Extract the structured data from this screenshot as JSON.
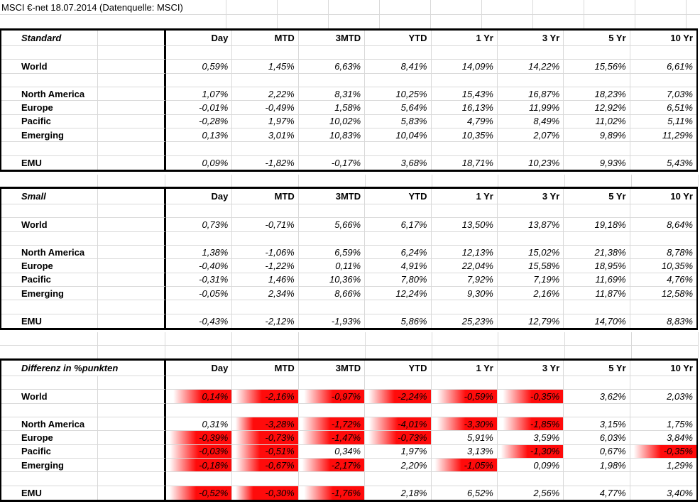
{
  "title": "MSCI €-net 18.07.2014 (Datenquelle: MSCI)",
  "colors": {
    "highlight_red": "#ff0b0b",
    "gridline": "#d9d9d9",
    "table_border": "#000000"
  },
  "columns": [
    "Day",
    "MTD",
    "3MTD",
    "YTD",
    "1 Yr",
    "3 Yr",
    "5 Yr",
    "10 Yr"
  ],
  "tables": [
    {
      "key": "standard",
      "name": "Standard",
      "rows": [
        {
          "spacer": true
        },
        {
          "label": "World",
          "values": [
            "0,59%",
            "1,45%",
            "6,63%",
            "8,41%",
            "14,09%",
            "14,22%",
            "15,56%",
            "6,61%"
          ]
        },
        {
          "spacer": true
        },
        {
          "label": "North America",
          "values": [
            "1,07%",
            "2,22%",
            "8,31%",
            "10,25%",
            "15,43%",
            "16,87%",
            "18,23%",
            "7,03%"
          ]
        },
        {
          "label": "Europe",
          "values": [
            "-0,01%",
            "-0,49%",
            "1,58%",
            "5,64%",
            "16,13%",
            "11,99%",
            "12,92%",
            "6,51%"
          ]
        },
        {
          "label": "Pacific",
          "values": [
            "-0,28%",
            "1,97%",
            "10,02%",
            "5,83%",
            "4,79%",
            "8,49%",
            "11,02%",
            "5,11%"
          ]
        },
        {
          "label": "Emerging",
          "values": [
            "0,13%",
            "3,01%",
            "10,83%",
            "10,04%",
            "10,35%",
            "2,07%",
            "9,89%",
            "11,29%"
          ]
        },
        {
          "spacer": true
        },
        {
          "label": "EMU",
          "values": [
            "0,09%",
            "-1,82%",
            "-0,17%",
            "3,68%",
            "18,71%",
            "10,23%",
            "9,93%",
            "5,43%"
          ]
        }
      ]
    },
    {
      "key": "small",
      "name": "Small",
      "rows": [
        {
          "spacer": true
        },
        {
          "label": "World",
          "values": [
            "0,73%",
            "-0,71%",
            "5,66%",
            "6,17%",
            "13,50%",
            "13,87%",
            "19,18%",
            "8,64%"
          ]
        },
        {
          "spacer": true
        },
        {
          "label": "North America",
          "values": [
            "1,38%",
            "-1,06%",
            "6,59%",
            "6,24%",
            "12,13%",
            "15,02%",
            "21,38%",
            "8,78%"
          ]
        },
        {
          "label": "Europe",
          "values": [
            "-0,40%",
            "-1,22%",
            "0,11%",
            "4,91%",
            "22,04%",
            "15,58%",
            "18,95%",
            "10,35%"
          ]
        },
        {
          "label": "Pacific",
          "values": [
            "-0,31%",
            "1,46%",
            "10,36%",
            "7,80%",
            "7,92%",
            "7,19%",
            "11,69%",
            "4,76%"
          ]
        },
        {
          "label": "Emerging",
          "values": [
            "-0,05%",
            "2,34%",
            "8,66%",
            "12,24%",
            "9,30%",
            "2,16%",
            "11,87%",
            "12,58%"
          ]
        },
        {
          "spacer": true
        },
        {
          "label": "EMU",
          "values": [
            "-0,43%",
            "-2,12%",
            "-1,93%",
            "5,86%",
            "25,23%",
            "12,79%",
            "14,70%",
            "8,83%"
          ]
        }
      ]
    },
    {
      "key": "differenz",
      "name": "Differenz in %punkten",
      "rows": [
        {
          "spacer": true
        },
        {
          "label": "World",
          "values": [
            "0,14%",
            "-2,16%",
            "-0,97%",
            "-2,24%",
            "-0,59%",
            "-0,35%",
            "3,62%",
            "2,03%"
          ],
          "highlight": [
            55,
            45,
            52,
            45,
            52,
            52,
            null,
            null
          ]
        },
        {
          "spacer": true
        },
        {
          "label": "North America",
          "values": [
            "0,31%",
            "-3,28%",
            "-1,72%",
            "-4,01%",
            "-3,30%",
            "-1,85%",
            "3,15%",
            "1,75%"
          ],
          "highlight": [
            null,
            32,
            48,
            50,
            52,
            52,
            null,
            null
          ]
        },
        {
          "label": "Europe",
          "values": [
            "-0,39%",
            "-0,73%",
            "-1,47%",
            "-0,73%",
            "5,91%",
            "3,59%",
            "6,03%",
            "3,84%"
          ],
          "highlight": [
            46,
            42,
            48,
            48,
            null,
            null,
            null,
            null
          ]
        },
        {
          "label": "Pacific",
          "values": [
            "-0,03%",
            "-0,51%",
            "0,34%",
            "1,97%",
            "3,13%",
            "-1,30%",
            "0,67%",
            "-0,35%"
          ],
          "highlight": [
            50,
            42,
            null,
            null,
            null,
            46,
            null,
            46
          ]
        },
        {
          "label": "Emerging",
          "values": [
            "-0,18%",
            "-0,67%",
            "-2,17%",
            "2,20%",
            "-1,05%",
            "0,09%",
            "1,98%",
            "1,29%"
          ],
          "highlight": [
            46,
            42,
            48,
            null,
            46,
            null,
            null,
            null
          ]
        },
        {
          "spacer": true
        },
        {
          "label": "EMU",
          "values": [
            "-0,52%",
            "-0,30%",
            "-1,76%",
            "2,18%",
            "6,52%",
            "2,56%",
            "4,77%",
            "3,40%"
          ],
          "highlight": [
            46,
            32,
            52,
            null,
            null,
            null,
            null,
            null
          ]
        }
      ]
    }
  ]
}
